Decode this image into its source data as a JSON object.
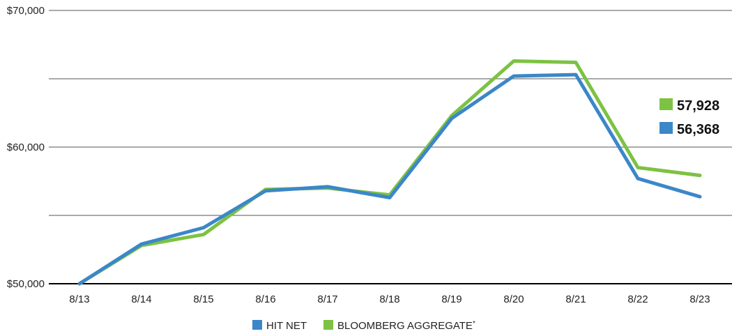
{
  "chart_data": {
    "type": "line",
    "title": "",
    "xlabel": "",
    "ylabel": "",
    "categories": [
      "8/13",
      "8/14",
      "8/15",
      "8/16",
      "8/17",
      "8/18",
      "8/19",
      "8/20",
      "8/21",
      "8/22",
      "8/23"
    ],
    "ylim": [
      50000,
      70000
    ],
    "y_ticks": [
      50000,
      55000,
      60000,
      65000,
      70000
    ],
    "y_tick_labels": [
      "$50,000",
      "",
      "$60,000",
      "",
      "$70,000"
    ],
    "grid": true,
    "legend_position": "bottom-center",
    "series": [
      {
        "name": "HIT NET",
        "color": "#3b87c8",
        "values": [
          50000,
          52900,
          54100,
          56800,
          57100,
          56300,
          62100,
          65200,
          65300,
          57700,
          56368
        ],
        "end_label": "56,368"
      },
      {
        "name": "BLOOMBERG AGGREGATE",
        "legend_suffix": "*",
        "color": "#7dc242",
        "values": [
          50000,
          52800,
          53600,
          56900,
          57000,
          56500,
          62300,
          66300,
          66200,
          58500,
          57928
        ],
        "end_label": "57,928"
      }
    ]
  }
}
